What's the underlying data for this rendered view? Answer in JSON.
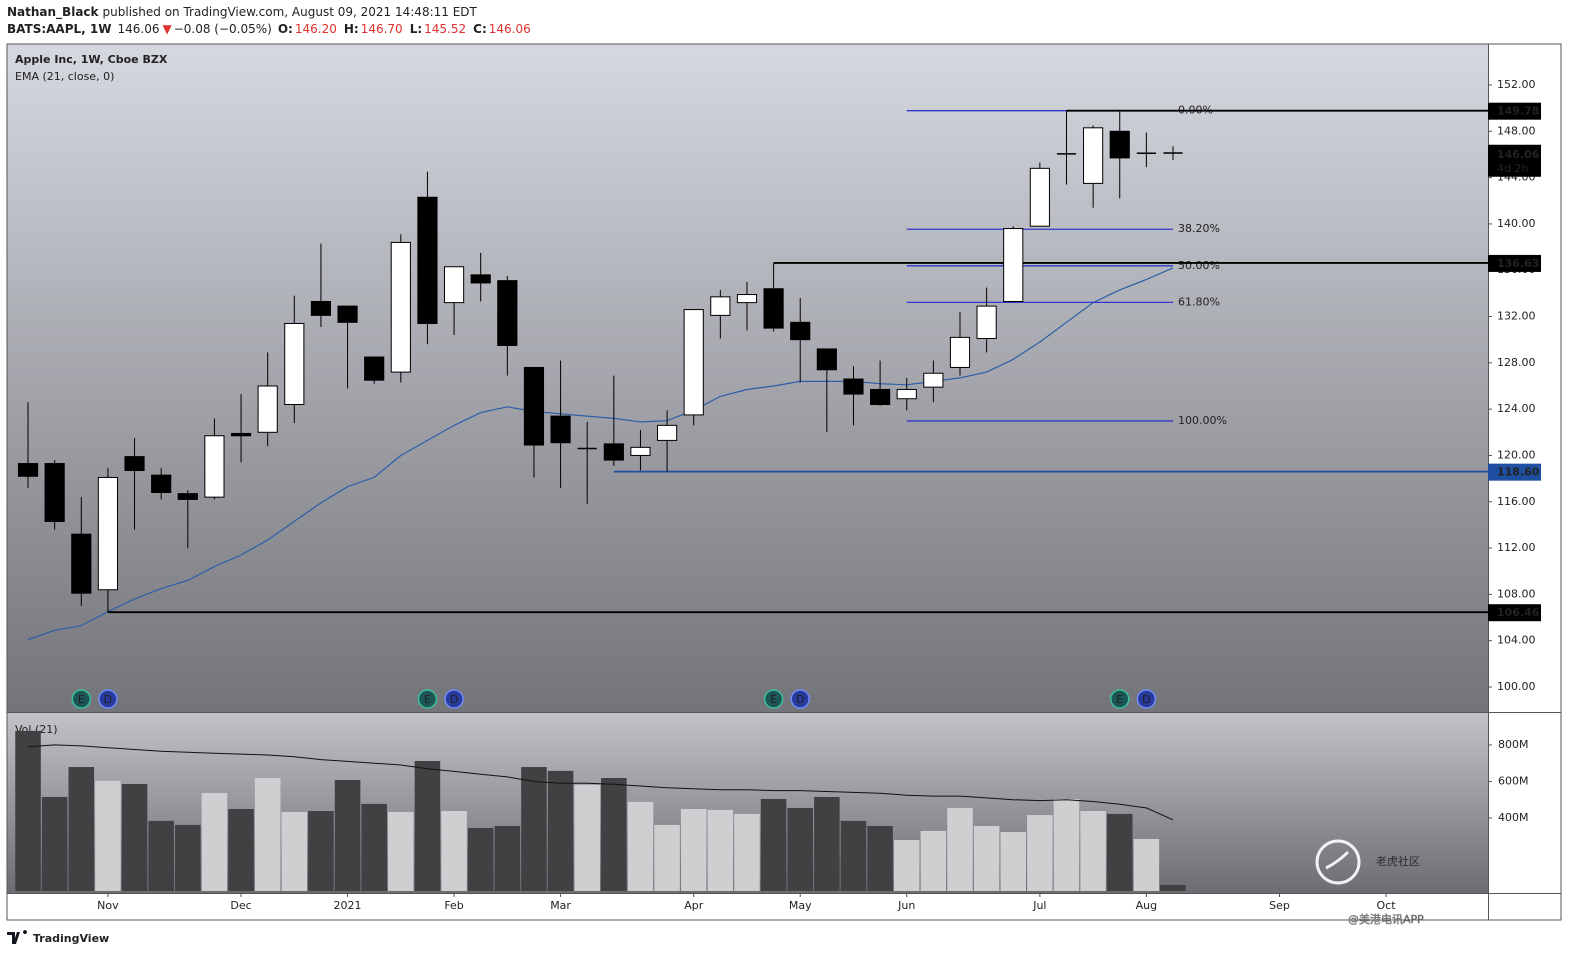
{
  "header": {
    "author": "Nathan_Black",
    "published": "published on TradingView.com, August 09, 2021 14:48:11 EDT",
    "symbol": "BATS:AAPL, 1W",
    "price": "146.06",
    "arrow": "▼",
    "change": "−0.08 (−0.05%)",
    "ohlc": [
      {
        "key": "O:",
        "value": "146.20"
      },
      {
        "key": "H:",
        "value": "146.70"
      },
      {
        "key": "L:",
        "value": "145.52"
      },
      {
        "key": "C:",
        "value": "146.06"
      }
    ]
  },
  "chart_data": [
    {
      "type": "candlestick",
      "title": "Apple Inc, 1W, Cboe BZX",
      "open": [
        119.3,
        119.3,
        113.2,
        108.4,
        119.9,
        118.3,
        116.7,
        116.4,
        121.9,
        122.0,
        124.4,
        133.3,
        132.9,
        128.5,
        127.2,
        142.3,
        133.2,
        135.6,
        135.1,
        127.6,
        123.4,
        120.6,
        121.0,
        120.0,
        121.3,
        123.5,
        132.1,
        133.2,
        134.4,
        131.5,
        129.2,
        126.6,
        125.7,
        124.9,
        125.9,
        127.6,
        130.1,
        133.3,
        139.8,
        146.0,
        143.5,
        148.0,
        146.1,
        146.2
      ],
      "high": [
        124.6,
        119.6,
        116.4,
        118.9,
        121.5,
        118.9,
        117.0,
        123.2,
        125.3,
        128.9,
        133.8,
        138.3,
        132.9,
        128.5,
        139.1,
        144.5,
        136.3,
        137.5,
        135.5,
        127.6,
        128.2,
        122.9,
        126.9,
        122.2,
        123.9,
        132.6,
        134.3,
        135.0,
        136.63,
        133.6,
        129.2,
        127.7,
        128.2,
        126.7,
        128.2,
        132.4,
        134.5,
        139.8,
        145.3,
        149.78,
        148.5,
        149.7,
        147.9,
        146.7
      ],
      "low": [
        117.2,
        113.6,
        107.0,
        106.46,
        113.6,
        116.2,
        112.0,
        116.2,
        119.4,
        120.8,
        122.8,
        131.1,
        125.8,
        126.2,
        126.3,
        129.6,
        130.4,
        133.3,
        126.9,
        118.1,
        117.2,
        115.8,
        119.1,
        118.7,
        118.6,
        122.6,
        130.1,
        130.8,
        130.7,
        126.3,
        122.0,
        122.6,
        124.3,
        123.9,
        124.6,
        126.9,
        128.9,
        133.3,
        139.8,
        143.4,
        141.4,
        142.2,
        144.9,
        145.52
      ],
      "close": [
        118.2,
        114.3,
        108.1,
        118.1,
        118.7,
        116.8,
        116.2,
        121.7,
        121.7,
        126.0,
        131.4,
        132.1,
        131.5,
        126.5,
        138.4,
        131.4,
        136.3,
        134.9,
        129.5,
        120.9,
        121.1,
        120.6,
        119.6,
        120.7,
        122.6,
        132.6,
        133.7,
        133.9,
        131.0,
        130.0,
        127.4,
        125.3,
        124.4,
        125.7,
        127.1,
        130.2,
        132.9,
        139.6,
        144.8,
        146.1,
        148.3,
        145.7,
        146.1,
        146.06
      ],
      "up_color": "#ffffff",
      "down_color": "#000000",
      "ema": {
        "name": "EMA (21, close, 0)",
        "color": "#2a5ea8",
        "values": [
          104.1,
          104.9,
          105.3,
          106.5,
          107.6,
          108.5,
          109.2,
          110.4,
          111.4,
          112.7,
          114.3,
          115.9,
          117.3,
          118.1,
          120.0,
          121.3,
          122.6,
          123.7,
          124.2,
          123.8,
          123.6,
          123.4,
          123.2,
          122.9,
          123.0,
          123.9,
          125.1,
          125.7,
          126.0,
          126.4,
          126.4,
          126.4,
          126.2,
          126.1,
          126.4,
          126.7,
          127.2,
          128.3,
          129.8,
          131.5,
          133.2,
          134.3,
          135.2,
          136.2
        ]
      },
      "levels": [
        {
          "value": 149.78,
          "label": "149.78",
          "color": "#000000",
          "from": 39
        },
        {
          "value": 136.63,
          "label": "136.63",
          "color": "#000000",
          "from": 28
        },
        {
          "value": 118.6,
          "label": "118.60",
          "color": "#1e4fa0",
          "from": 22
        },
        {
          "value": 106.46,
          "label": "106.46",
          "color": "#000000",
          "from": 3
        }
      ],
      "fib": {
        "from": 33,
        "to": 43,
        "color": "#2f37c8",
        "levels": [
          {
            "percent": 0,
            "label": "0.00%",
            "price": 149.78
          },
          {
            "percent": 38.2,
            "label": "38.20%",
            "price": 139.54
          },
          {
            "percent": 50,
            "label": "50.00%",
            "price": 136.38
          },
          {
            "percent": 61.8,
            "label": "61.80%",
            "price": 133.22
          },
          {
            "percent": 100,
            "label": "100.00%",
            "price": 122.98
          }
        ]
      },
      "last": {
        "value": 146.06,
        "label": "146.06",
        "countdown": "4d 2h"
      },
      "events": [
        {
          "x": 2,
          "label": "E"
        },
        {
          "x": 3,
          "label": "D"
        },
        {
          "x": 15,
          "label": "E"
        },
        {
          "x": 16,
          "label": "D"
        },
        {
          "x": 28,
          "label": "E"
        },
        {
          "x": 29,
          "label": "D"
        },
        {
          "x": 41,
          "label": "E"
        },
        {
          "x": 42,
          "label": "D"
        }
      ],
      "xlim": [
        -0.79,
        54.83
      ],
      "xticks": [
        {
          "value": 3,
          "label": "Nov"
        },
        {
          "value": 8,
          "label": "Dec"
        },
        {
          "value": 12,
          "label": "2021"
        },
        {
          "value": 16,
          "label": "Feb"
        },
        {
          "value": 20,
          "label": "Mar"
        },
        {
          "value": 25,
          "label": "Apr"
        },
        {
          "value": 29,
          "label": "May"
        },
        {
          "value": 33,
          "label": "Jun"
        },
        {
          "value": 38,
          "label": "Jul"
        },
        {
          "value": 42,
          "label": "Aug"
        },
        {
          "value": 47,
          "label": "Sep"
        },
        {
          "value": 51,
          "label": "Oct"
        }
      ],
      "ylim": [
        97.84,
        155.54
      ],
      "yticks": [
        {
          "value": 100,
          "label": "100.00"
        },
        {
          "value": 104,
          "label": "104.00"
        },
        {
          "value": 108,
          "label": "108.00"
        },
        {
          "value": 112,
          "label": "112.00"
        },
        {
          "value": 116,
          "label": "116.00"
        },
        {
          "value": 120,
          "label": "120.00"
        },
        {
          "value": 124,
          "label": "124.00"
        },
        {
          "value": 128,
          "label": "128.00"
        },
        {
          "value": 132,
          "label": "132.00"
        },
        {
          "value": 136,
          "label": "136.00"
        },
        {
          "value": 140,
          "label": "140.00"
        },
        {
          "value": 144,
          "label": "144.00"
        },
        {
          "value": 148,
          "label": "148.00"
        },
        {
          "value": 152,
          "label": "152.00"
        }
      ]
    },
    {
      "type": "bar",
      "title": "Vol (21)",
      "values": [
        877,
        515,
        679,
        603,
        586,
        384,
        362,
        537,
        449,
        619,
        433,
        438,
        608,
        477,
        433,
        712,
        438,
        345,
        356,
        679,
        658,
        581,
        619,
        488,
        362,
        449,
        444,
        422,
        504,
        455,
        515,
        384,
        356,
        279,
        329,
        455,
        356,
        323,
        416,
        504,
        438,
        422,
        285,
        33
      ],
      "up_color": "#cfcfd2",
      "down_color": "#414144",
      "ma_values": [
        790,
        800,
        795,
        785,
        775,
        765,
        760,
        755,
        750,
        745,
        735,
        720,
        710,
        700,
        690,
        670,
        655,
        640,
        625,
        600,
        590,
        590,
        585,
        575,
        565,
        560,
        555,
        555,
        550,
        550,
        545,
        540,
        535,
        525,
        520,
        520,
        510,
        500,
        495,
        500,
        490,
        475,
        455,
        390
      ],
      "ma_color": "#111111",
      "ylim": [
        -11,
        975
      ],
      "yticks": [
        {
          "value": 400,
          "label": "400M"
        },
        {
          "value": 600,
          "label": "600M"
        },
        {
          "value": 800,
          "label": "800M"
        }
      ]
    }
  ],
  "watermark": {
    "text": "老虎社区",
    "sub": "@美港电讯APP"
  },
  "footer": {
    "brand": "TradingView"
  }
}
